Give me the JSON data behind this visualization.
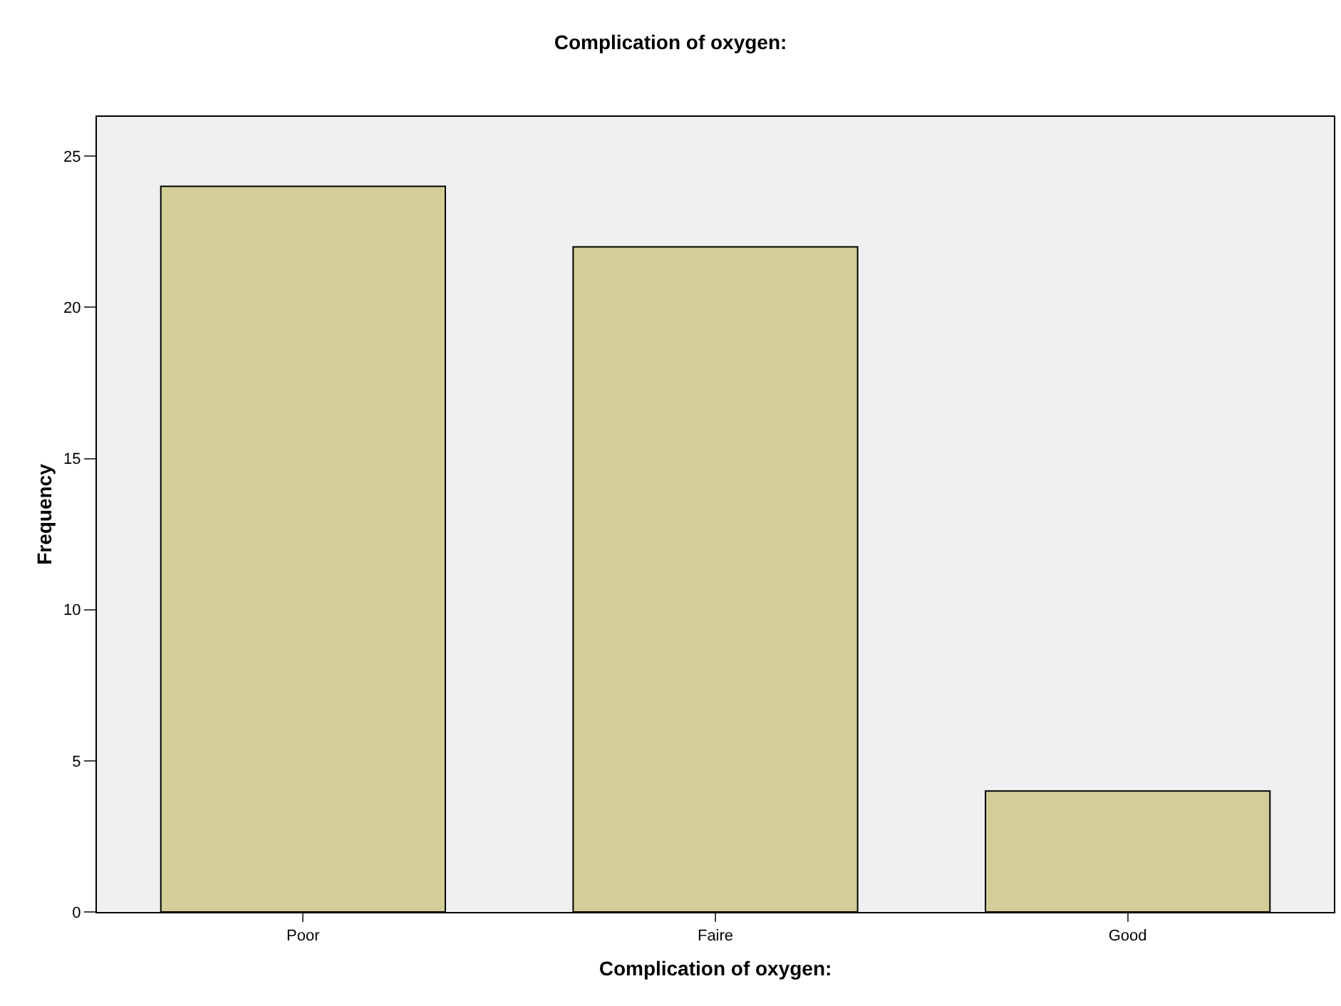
{
  "chart_data": {
    "type": "bar",
    "title": "Complication of oxygen:",
    "xlabel": "Complication of oxygen:",
    "ylabel": "Frequency",
    "categories": [
      "Poor",
      "Faire",
      "Good"
    ],
    "values": [
      24,
      22,
      4
    ],
    "color": "#d3ce98",
    "ylim": [
      0,
      26.3
    ],
    "yticks": [
      0,
      5,
      10,
      15,
      20,
      25
    ],
    "grid": false,
    "legend": false
  }
}
